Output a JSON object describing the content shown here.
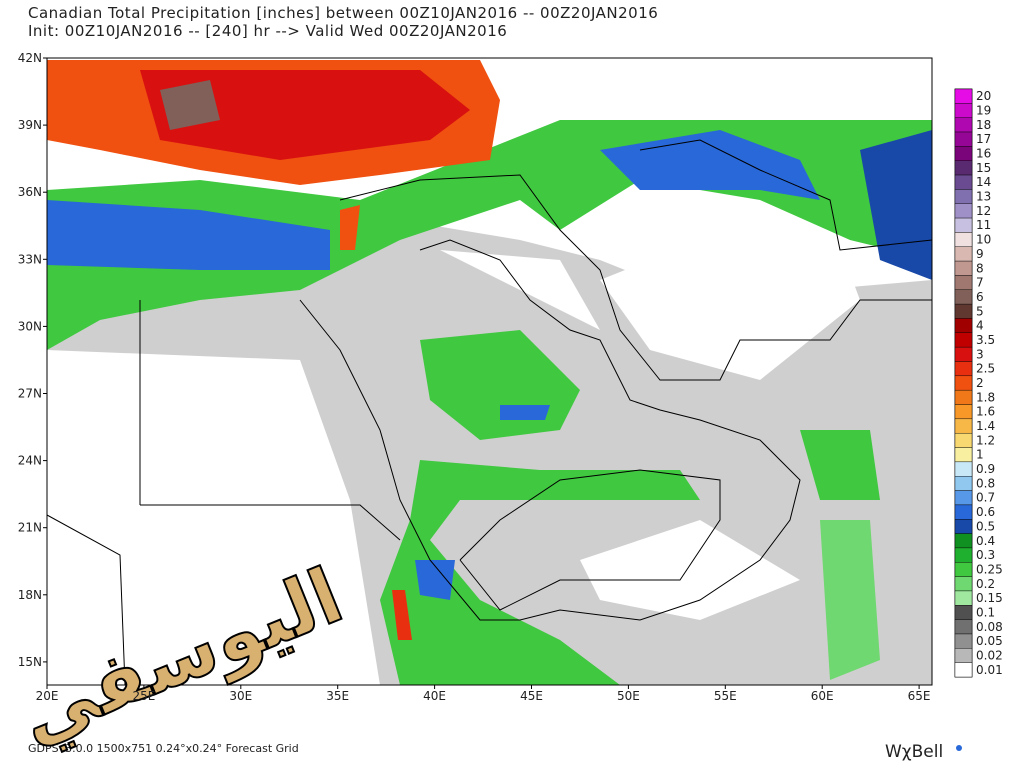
{
  "header": {
    "title": "Canadian Total Precipitation [inches] between 00Z10JAN2016 -- 00Z20JAN2016",
    "subtitle": "Init: 00Z10JAN2016 -- [240] hr --> Valid Wed 00Z20JAN2016"
  },
  "map": {
    "lat_labels": [
      "42N",
      "39N",
      "36N",
      "33N",
      "30N",
      "27N",
      "24N",
      "21N",
      "18N",
      "15N"
    ],
    "lon_labels": [
      "20E",
      "25E",
      "30E",
      "35E",
      "40E",
      "45E",
      "50E",
      "55E",
      "60E",
      "65E"
    ]
  },
  "colorbar": [
    {
      "label": "20",
      "color": "#e60ce6"
    },
    {
      "label": "19",
      "color": "#cc0acc"
    },
    {
      "label": "18",
      "color": "#b008b0"
    },
    {
      "label": "17",
      "color": "#960696"
    },
    {
      "label": "16",
      "color": "#7a047a"
    },
    {
      "label": "15",
      "color": "#5a2a70"
    },
    {
      "label": "14",
      "color": "#6a4a90"
    },
    {
      "label": "13",
      "color": "#8070b0"
    },
    {
      "label": "12",
      "color": "#a090c8"
    },
    {
      "label": "11",
      "color": "#c8c0e0"
    },
    {
      "label": "10",
      "color": "#f0e0e0"
    },
    {
      "label": "9",
      "color": "#d8b8b0"
    },
    {
      "label": "8",
      "color": "#c09890"
    },
    {
      "label": "7",
      "color": "#a07870"
    },
    {
      "label": "6",
      "color": "#806058"
    },
    {
      "label": "5",
      "color": "#603830"
    },
    {
      "label": "4",
      "color": "#a00000"
    },
    {
      "label": "3.5",
      "color": "#c00000"
    },
    {
      "label": "3",
      "color": "#d81010"
    },
    {
      "label": "2.5",
      "color": "#e83010"
    },
    {
      "label": "2",
      "color": "#f05010"
    },
    {
      "label": "1.8",
      "color": "#f07818"
    },
    {
      "label": "1.6",
      "color": "#f89828"
    },
    {
      "label": "1.4",
      "color": "#f8b848"
    },
    {
      "label": "1.2",
      "color": "#f8d870"
    },
    {
      "label": "1",
      "color": "#f8f0a0"
    },
    {
      "label": "0.9",
      "color": "#c8e8f8"
    },
    {
      "label": "0.8",
      "color": "#90c8f0"
    },
    {
      "label": "0.7",
      "color": "#5898e8"
    },
    {
      "label": "0.6",
      "color": "#2868d8"
    },
    {
      "label": "0.5",
      "color": "#1848a8"
    },
    {
      "label": "0.4",
      "color": "#109020"
    },
    {
      "label": "0.3",
      "color": "#20b030"
    },
    {
      "label": "0.25",
      "color": "#40c840"
    },
    {
      "label": "0.2",
      "color": "#70d870"
    },
    {
      "label": "0.15",
      "color": "#a0e8a0"
    },
    {
      "label": "0.1",
      "color": "#505050"
    },
    {
      "label": "0.08",
      "color": "#707070"
    },
    {
      "label": "0.05",
      "color": "#909090"
    },
    {
      "label": "0.02",
      "color": "#b8b8b8"
    },
    {
      "label": "0.01",
      "color": "#ffffff"
    }
  ],
  "footer": {
    "grid_info": "GDPSv3.0.0 1500x751 0.24°x0.24° Forecast Grid",
    "logo": "WχBell",
    "watermark": "اليوسفي"
  }
}
